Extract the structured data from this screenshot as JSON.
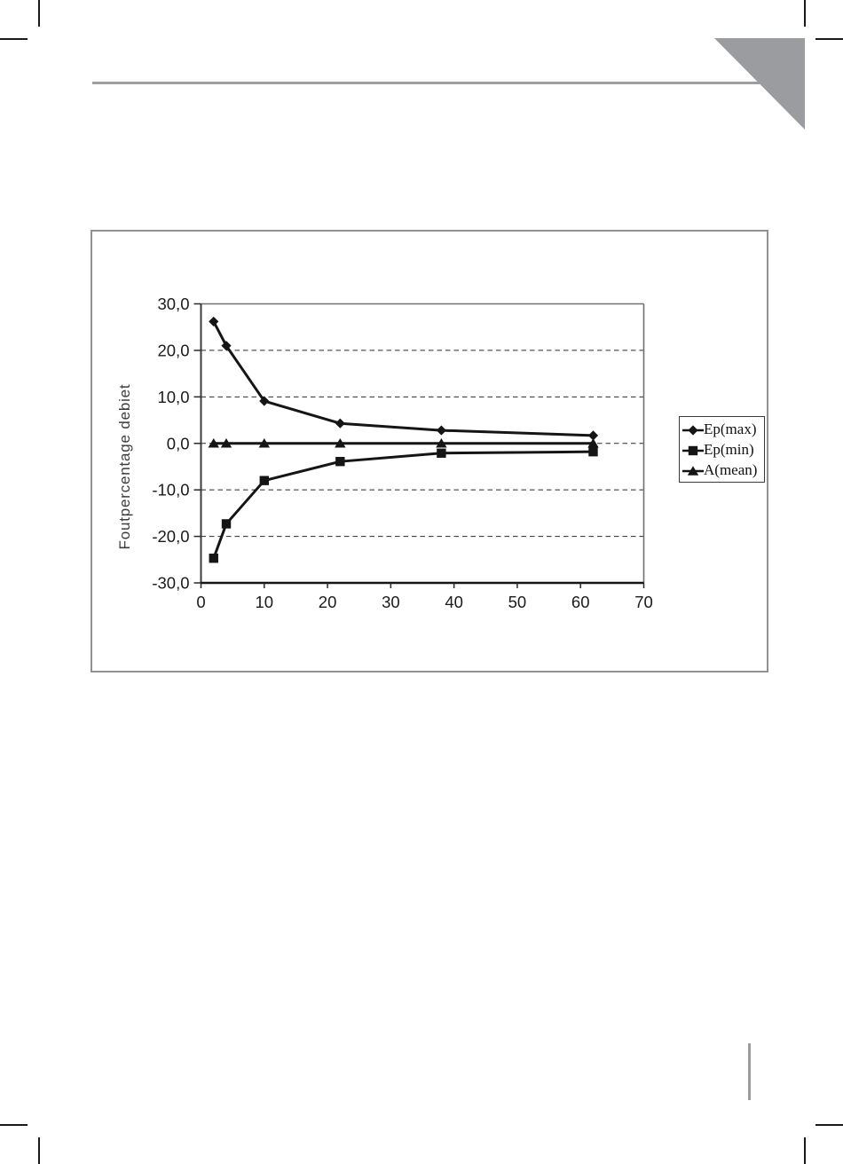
{
  "colors": {
    "decoration_gray": "#9a9ca0",
    "series_black": "#151515"
  },
  "chart_data": {
    "type": "line",
    "ylabel": "Foutpercentage debiet",
    "xlim": [
      0,
      70
    ],
    "ylim": [
      -30,
      30
    ],
    "grid": "horizontal-dashed",
    "legend_position": "right",
    "x": [
      2,
      4,
      10,
      22,
      38,
      62
    ],
    "series": [
      {
        "name": "Ep(max)",
        "marker": "diamond",
        "values": [
          26.2,
          21.0,
          9.1,
          4.3,
          2.8,
          1.7
        ]
      },
      {
        "name": "Ep(min)",
        "marker": "square",
        "values": [
          -24.7,
          -17.3,
          -8.0,
          -3.9,
          -2.1,
          -1.8
        ]
      },
      {
        "name": "A(mean)",
        "marker": "triangle",
        "values": [
          0,
          0,
          0,
          0,
          0,
          0
        ]
      }
    ],
    "xtick_values": [
      0,
      10,
      20,
      30,
      40,
      50,
      60,
      70
    ],
    "xtick_labels": [
      "0",
      "10",
      "20",
      "30",
      "40",
      "50",
      "60",
      "70"
    ],
    "ytick_values": [
      30,
      20,
      10,
      0,
      -10,
      -20,
      -30
    ],
    "ytick_labels": [
      "30,0",
      "20,0",
      "10,0",
      "0,0",
      "-10,0",
      "-20,0",
      "-30,0"
    ]
  }
}
